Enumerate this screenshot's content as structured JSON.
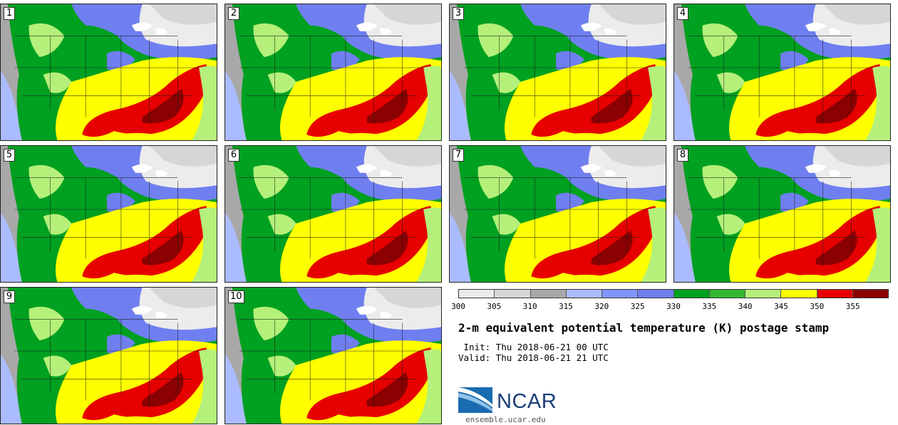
{
  "stamps": [
    {
      "label": "1"
    },
    {
      "label": "2"
    },
    {
      "label": "3"
    },
    {
      "label": "4"
    },
    {
      "label": "5"
    },
    {
      "label": "6"
    },
    {
      "label": "7"
    },
    {
      "label": "8"
    },
    {
      "label": "9"
    },
    {
      "label": "10"
    }
  ],
  "colorbar": {
    "colors": [
      "#ececec",
      "#d6d6d6",
      "#a8a8a8",
      "#aabcff",
      "#7f95ff",
      "#6f7ff0",
      "#00a020",
      "#33b833",
      "#b4f07a",
      "#ffff00",
      "#e60000",
      "#8b0000"
    ],
    "ticks": [
      "300",
      "305",
      "310",
      "315",
      "320",
      "325",
      "330",
      "335",
      "340",
      "345",
      "350",
      "355"
    ]
  },
  "title": "2-m equivalent potential temperature (K) postage stamp",
  "init_text": " Init: Thu 2018-06-21 00 UTC",
  "valid_text": "Valid: Thu 2018-06-21 21 UTC",
  "logo_text": "NCAR",
  "site_text": "ensemble.ucar.edu"
}
